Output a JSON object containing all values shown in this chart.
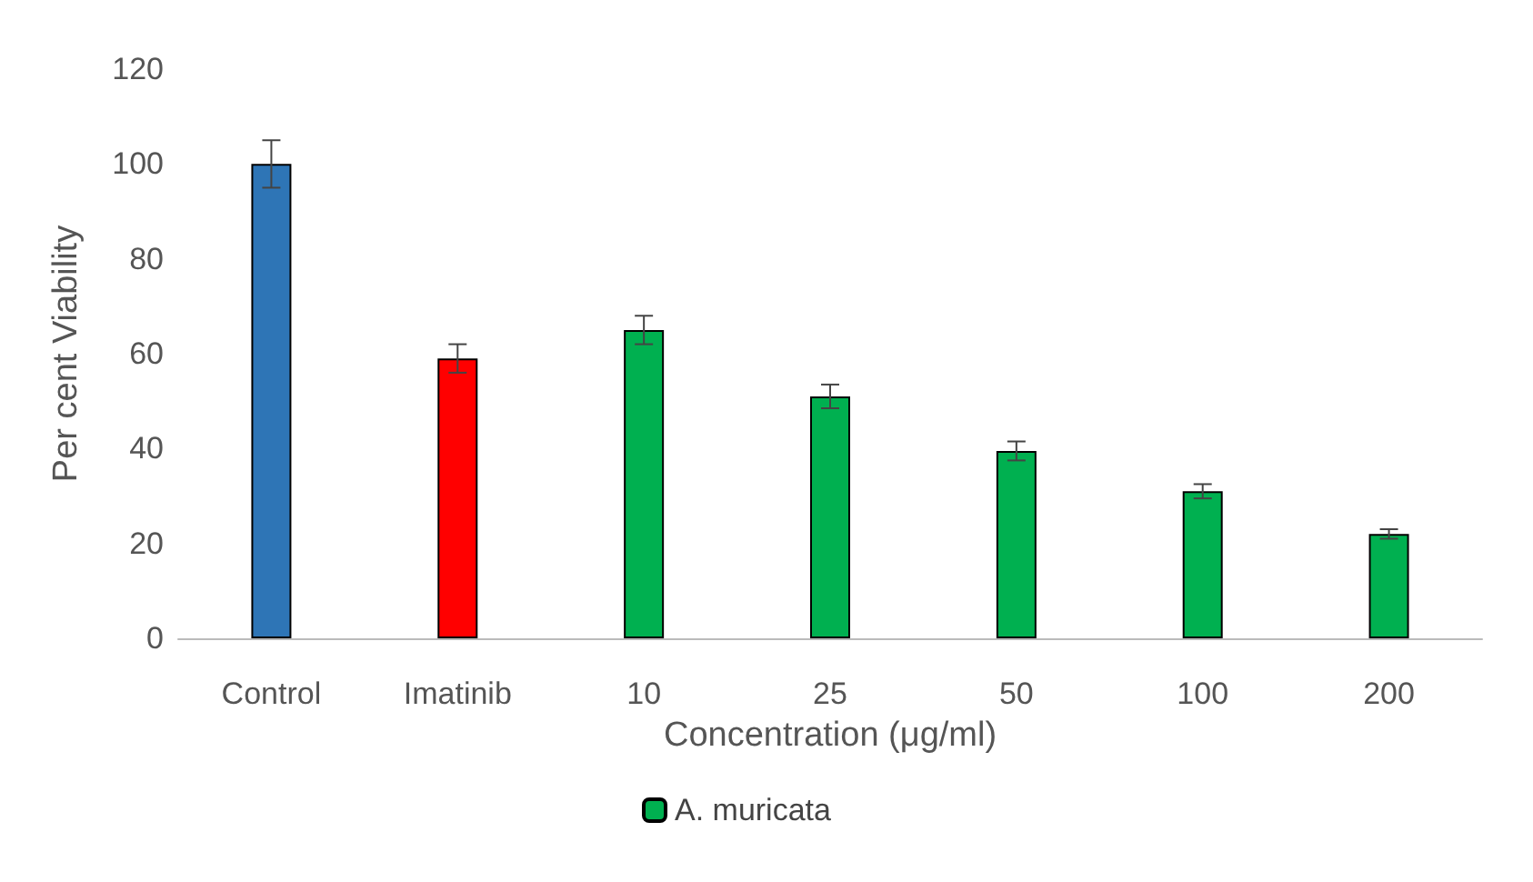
{
  "chart_data": {
    "type": "bar",
    "xlabel": "Concentration (μg/ml)",
    "ylabel": "Per cent Viability",
    "categories": [
      "Control",
      "Imatinib",
      "10",
      "25",
      "50",
      "100",
      "200"
    ],
    "series": [
      {
        "name": "A. muricata",
        "color": "#00b050",
        "colors": [
          "#2e75b6",
          "#ff0000",
          "#00b050",
          "#00b050",
          "#00b050",
          "#00b050",
          "#00b050"
        ],
        "values": [
          100,
          59,
          65,
          51,
          39.5,
          31,
          22
        ],
        "errors": [
          5,
          3,
          3,
          2.5,
          2,
          1.5,
          1
        ]
      }
    ],
    "ylim": [
      0,
      120
    ],
    "yticks": [
      0,
      20,
      40,
      60,
      80,
      100,
      120
    ],
    "grid": false,
    "legend": "bottom"
  }
}
